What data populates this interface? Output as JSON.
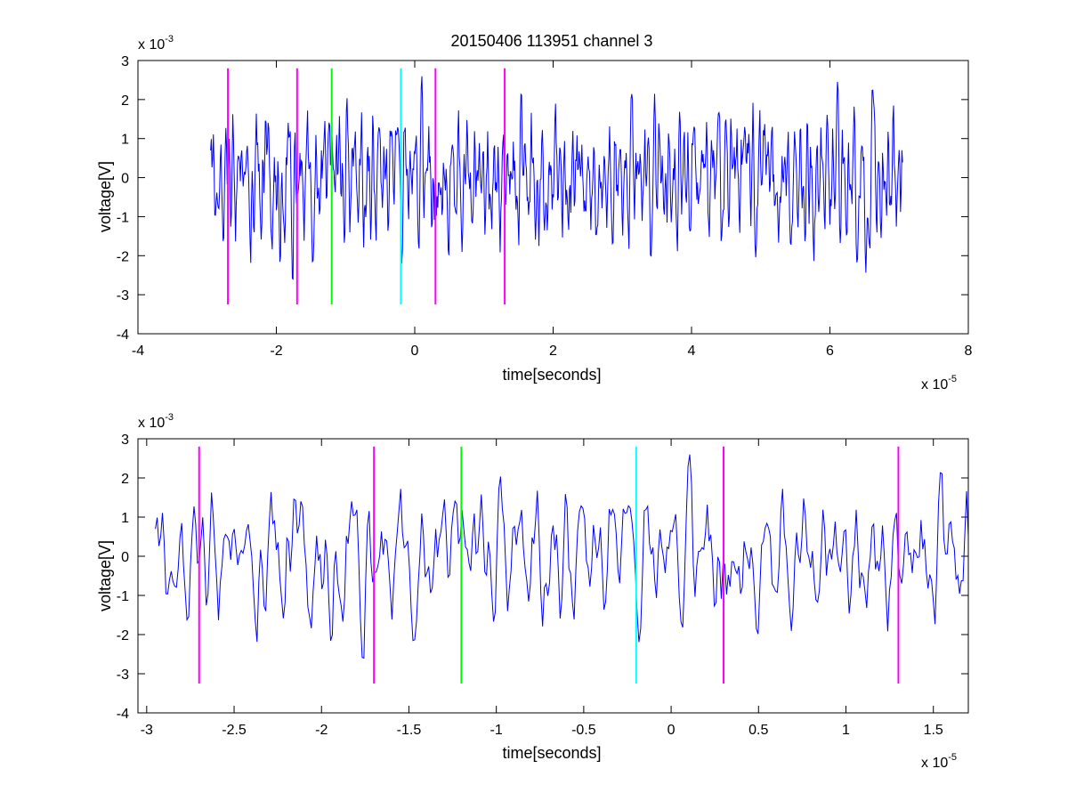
{
  "chart_data": [
    {
      "type": "line",
      "title": "20150406 113951 channel 3",
      "xlabel": "time[seconds]",
      "ylabel": "voltage[V]",
      "x_multiplier": "x 10",
      "x_exponent": "-5",
      "y_multiplier": "x 10",
      "y_exponent": "-3",
      "xlim": [
        -4,
        8
      ],
      "ylim": [
        -4,
        3
      ],
      "xticks": [
        -4,
        -2,
        0,
        2,
        4,
        6,
        8
      ],
      "xtick_labels": [
        "-4",
        "-2",
        "0",
        "2",
        "4",
        "6",
        "8"
      ],
      "yticks": [
        -4,
        -3,
        -2,
        -1,
        0,
        1,
        2,
        3
      ],
      "ytick_labels": [
        "-4",
        "-3",
        "-2",
        "-1",
        "0",
        "1",
        "2",
        "3"
      ],
      "grid": false,
      "signal": {
        "color": "#0000ff",
        "x_start": -2.95,
        "x_end": 7.05,
        "description_points": 1000
      },
      "markers": [
        {
          "x": -2.7,
          "color": "#ff00ff"
        },
        {
          "x": -1.7,
          "color": "#ff00ff"
        },
        {
          "x": -1.2,
          "color": "#00ff00"
        },
        {
          "x": -0.2,
          "color": "#00ffff"
        },
        {
          "x": 0.3,
          "color": "#ff00ff"
        },
        {
          "x": 1.3,
          "color": "#ff00ff"
        }
      ],
      "marker_range": [
        -3.25,
        2.8
      ]
    },
    {
      "type": "line",
      "title": "",
      "xlabel": "time[seconds]",
      "ylabel": "voltage[V]",
      "x_multiplier": "x 10",
      "x_exponent": "-5",
      "y_multiplier": "x 10",
      "y_exponent": "-3",
      "xlim": [
        -3.05,
        1.7
      ],
      "ylim": [
        -4,
        3
      ],
      "xticks": [
        -3,
        -2.5,
        -2,
        -1.5,
        -1,
        -0.5,
        0,
        0.5,
        1,
        1.5
      ],
      "xtick_labels": [
        "-3",
        "-2.5",
        "-2",
        "-1.5",
        "-1",
        "-0.5",
        "0",
        "0.5",
        "1",
        "1.5"
      ],
      "yticks": [
        -4,
        -3,
        -2,
        -1,
        0,
        1,
        2,
        3
      ],
      "ytick_labels": [
        "-4",
        "-3",
        "-2",
        "-1",
        "0",
        "1",
        "2",
        "3"
      ],
      "grid": false,
      "signal": {
        "color": "#0000ff",
        "x_start": -2.95,
        "x_end": 1.7,
        "description_points": 465
      },
      "markers": [
        {
          "x": -2.7,
          "color": "#ff00ff"
        },
        {
          "x": -1.7,
          "color": "#ff00ff"
        },
        {
          "x": -1.2,
          "color": "#00ff00"
        },
        {
          "x": -0.2,
          "color": "#00ffff"
        },
        {
          "x": 0.3,
          "color": "#ff00ff"
        },
        {
          "x": 1.3,
          "color": "#ff00ff"
        }
      ],
      "marker_range": [
        -3.25,
        2.8
      ]
    }
  ]
}
